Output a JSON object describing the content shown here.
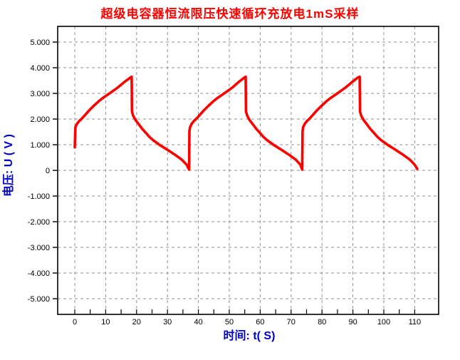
{
  "colors": {
    "title": "#FF0000",
    "curve": "#FF0000",
    "axis_label": "#0000CC",
    "grid": "#909090",
    "axis": "#000000",
    "background": "#FFFFFF"
  },
  "chart_data": {
    "type": "line",
    "title": "超级电容器恒流限压快速循环充放电1mS采样",
    "xlabel": "时间: t( S)",
    "ylabel": "电压: U ( V )",
    "xlim": [
      0,
      110
    ],
    "ylim": [
      -5,
      5
    ],
    "x_ticks": [
      0,
      10,
      20,
      30,
      40,
      50,
      60,
      70,
      80,
      90,
      100,
      110
    ],
    "x_minor_tick_step": 5,
    "y_ticks": [
      5,
      4,
      3,
      2,
      1,
      0,
      -1,
      -2,
      -3,
      -4,
      -5
    ],
    "y_tick_labels": [
      "5.000",
      "4.000",
      "3.000",
      "2.000",
      "1.000",
      "0",
      "-1.000",
      "-2.000",
      "-3.000",
      "-4.000",
      "-5.000"
    ],
    "grid": "dashed",
    "legend": "none",
    "series": [
      {
        "name": "电压",
        "color": "#FF0000",
        "points": [
          [
            0,
            0.9
          ],
          [
            0.2,
            1.68
          ],
          [
            0.7,
            1.81
          ],
          [
            1.5,
            1.93
          ],
          [
            2.3,
            2.02
          ],
          [
            3.5,
            2.18
          ],
          [
            4.6,
            2.33
          ],
          [
            6,
            2.5
          ],
          [
            7.8,
            2.7
          ],
          [
            9.2,
            2.83
          ],
          [
            11.5,
            3.02
          ],
          [
            13.8,
            3.22
          ],
          [
            16,
            3.44
          ],
          [
            17.8,
            3.6
          ],
          [
            18.4,
            3.65
          ],
          [
            18.5,
            2.3
          ],
          [
            18.9,
            2.13
          ],
          [
            19.6,
            1.97
          ],
          [
            20.7,
            1.8
          ],
          [
            21.8,
            1.62
          ],
          [
            23,
            1.46
          ],
          [
            24.1,
            1.31
          ],
          [
            25.3,
            1.18
          ],
          [
            27.6,
            0.98
          ],
          [
            30,
            0.8
          ],
          [
            32.3,
            0.62
          ],
          [
            34.6,
            0.42
          ],
          [
            36.2,
            0.22
          ],
          [
            37,
            0.03
          ],
          [
            37.1,
            1.53
          ],
          [
            37.3,
            1.68
          ],
          [
            37.8,
            1.81
          ],
          [
            38.6,
            1.93
          ],
          [
            39.4,
            2.02
          ],
          [
            40.6,
            2.18
          ],
          [
            41.7,
            2.33
          ],
          [
            43.1,
            2.5
          ],
          [
            44.9,
            2.7
          ],
          [
            46.3,
            2.83
          ],
          [
            48.6,
            3.02
          ],
          [
            50.9,
            3.22
          ],
          [
            53,
            3.44
          ],
          [
            54.7,
            3.6
          ],
          [
            55.3,
            3.65
          ],
          [
            55.4,
            2.3
          ],
          [
            55.8,
            2.13
          ],
          [
            56.5,
            1.97
          ],
          [
            57.6,
            1.8
          ],
          [
            58.7,
            1.62
          ],
          [
            59.9,
            1.46
          ],
          [
            61,
            1.31
          ],
          [
            62.2,
            1.18
          ],
          [
            64.5,
            0.98
          ],
          [
            66.9,
            0.8
          ],
          [
            69.2,
            0.62
          ],
          [
            71.5,
            0.42
          ],
          [
            73,
            0.22
          ],
          [
            73.6,
            0.03
          ],
          [
            73.7,
            1.53
          ],
          [
            73.9,
            1.68
          ],
          [
            74.4,
            1.81
          ],
          [
            75.2,
            1.93
          ],
          [
            76,
            2.02
          ],
          [
            77.2,
            2.18
          ],
          [
            78.3,
            2.33
          ],
          [
            79.7,
            2.5
          ],
          [
            81.5,
            2.7
          ],
          [
            82.9,
            2.83
          ],
          [
            85.2,
            3.02
          ],
          [
            87.5,
            3.22
          ],
          [
            89.7,
            3.44
          ],
          [
            91.4,
            3.6
          ],
          [
            92.2,
            3.65
          ],
          [
            92.3,
            2.3
          ],
          [
            92.7,
            2.13
          ],
          [
            93.4,
            1.97
          ],
          [
            94.5,
            1.8
          ],
          [
            95.6,
            1.62
          ],
          [
            96.8,
            1.46
          ],
          [
            97.9,
            1.31
          ],
          [
            99.1,
            1.18
          ],
          [
            101.4,
            0.98
          ],
          [
            103.8,
            0.8
          ],
          [
            106.1,
            0.62
          ],
          [
            108.4,
            0.42
          ],
          [
            110,
            0.22
          ],
          [
            110.8,
            0.06
          ]
        ]
      }
    ]
  }
}
